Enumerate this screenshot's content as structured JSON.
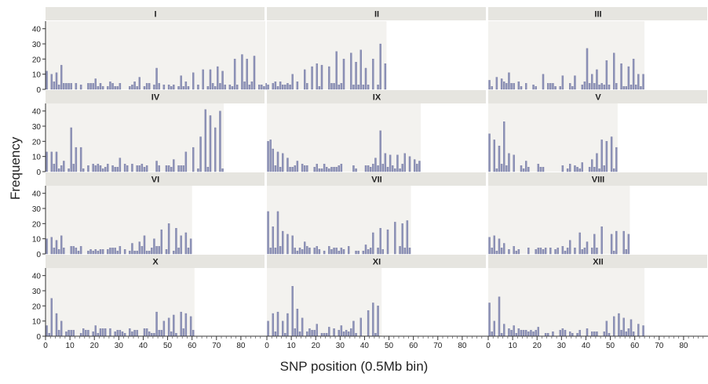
{
  "chart_data": {
    "type": "bar",
    "ylabel": "Frequency",
    "xlabel": "SNP position (0.5Mb bin)",
    "ylim": [
      0,
      45
    ],
    "y_ticks": [
      "0",
      "10",
      "20",
      "30",
      "40"
    ],
    "x_ticks": [
      "0",
      "10",
      "20",
      "30",
      "40",
      "50",
      "60",
      "70",
      "80"
    ],
    "xlim": [
      0,
      90
    ],
    "colors": {
      "bar": "#8d92b8",
      "panel_bg": "#f3f2ef",
      "strip_bg": "#e6e5e0"
    },
    "panels": [
      {
        "label": "I",
        "xmax": 91,
        "peaks": [
          [
            0,
            12
          ],
          [
            2,
            10
          ],
          [
            4,
            11
          ],
          [
            6,
            16
          ],
          [
            8,
            4
          ],
          [
            20,
            7
          ],
          [
            38,
            8
          ],
          [
            45,
            14
          ],
          [
            55,
            9
          ],
          [
            60,
            11
          ],
          [
            64,
            13
          ],
          [
            67,
            13
          ],
          [
            70,
            15
          ],
          [
            72,
            12
          ],
          [
            77,
            20
          ],
          [
            80,
            23
          ],
          [
            82,
            20
          ],
          [
            85,
            22
          ]
        ]
      },
      {
        "label": "II",
        "xmax": 49,
        "peaks": [
          [
            5,
            5
          ],
          [
            10,
            10
          ],
          [
            15,
            13
          ],
          [
            18,
            15
          ],
          [
            20,
            17
          ],
          [
            22,
            16
          ],
          [
            25,
            15
          ],
          [
            28,
            25
          ],
          [
            31,
            20
          ],
          [
            34,
            24
          ],
          [
            36,
            18
          ],
          [
            38,
            26
          ],
          [
            40,
            14
          ],
          [
            43,
            20
          ],
          [
            46,
            30
          ],
          [
            48,
            17
          ]
        ]
      },
      {
        "label": "III",
        "xmax": 64,
        "peaks": [
          [
            0,
            6
          ],
          [
            3,
            8
          ],
          [
            5,
            7
          ],
          [
            8,
            11
          ],
          [
            12,
            5
          ],
          [
            22,
            10
          ],
          [
            30,
            9
          ],
          [
            35,
            9
          ],
          [
            40,
            27
          ],
          [
            42,
            10
          ],
          [
            44,
            13
          ],
          [
            48,
            19
          ],
          [
            51,
            24
          ],
          [
            54,
            17
          ],
          [
            57,
            15
          ],
          [
            59,
            20
          ],
          [
            61,
            10
          ],
          [
            63,
            10
          ]
        ]
      },
      {
        "label": "IV",
        "xmax": 73,
        "peaks": [
          [
            0,
            13
          ],
          [
            2,
            13
          ],
          [
            4,
            13
          ],
          [
            7,
            7
          ],
          [
            10,
            29
          ],
          [
            12,
            16
          ],
          [
            14,
            16
          ],
          [
            25,
            5
          ],
          [
            30,
            9
          ],
          [
            35,
            5
          ],
          [
            45,
            7
          ],
          [
            52,
            8
          ],
          [
            57,
            13
          ],
          [
            60,
            16
          ],
          [
            63,
            23
          ],
          [
            65,
            41
          ],
          [
            67,
            37
          ],
          [
            69,
            29
          ],
          [
            71,
            40
          ]
        ]
      },
      {
        "label": "IX",
        "xmax": 63,
        "peaks": [
          [
            0,
            20
          ],
          [
            1,
            21
          ],
          [
            2,
            15
          ],
          [
            4,
            13
          ],
          [
            6,
            12
          ],
          [
            8,
            9
          ],
          [
            12,
            7
          ],
          [
            20,
            5
          ],
          [
            30,
            5
          ],
          [
            40,
            4
          ],
          [
            44,
            9
          ],
          [
            46,
            27
          ],
          [
            48,
            12
          ],
          [
            50,
            11
          ],
          [
            53,
            11
          ],
          [
            56,
            12
          ],
          [
            58,
            10
          ],
          [
            60,
            8
          ],
          [
            62,
            7
          ]
        ]
      },
      {
        "label": "V",
        "xmax": 53,
        "peaks": [
          [
            0,
            25
          ],
          [
            2,
            21
          ],
          [
            4,
            17
          ],
          [
            6,
            33
          ],
          [
            8,
            12
          ],
          [
            10,
            11
          ],
          [
            15,
            7
          ],
          [
            20,
            5
          ],
          [
            30,
            4
          ],
          [
            38,
            6
          ],
          [
            42,
            8
          ],
          [
            44,
            12
          ],
          [
            46,
            21
          ],
          [
            48,
            20
          ],
          [
            50,
            23
          ],
          [
            52,
            16
          ]
        ]
      },
      {
        "label": "VI",
        "xmax": 60,
        "peaks": [
          [
            0,
            10
          ],
          [
            2,
            11
          ],
          [
            4,
            9
          ],
          [
            6,
            12
          ],
          [
            10,
            5
          ],
          [
            20,
            3
          ],
          [
            30,
            5
          ],
          [
            35,
            7
          ],
          [
            38,
            8
          ],
          [
            40,
            12
          ],
          [
            44,
            10
          ],
          [
            47,
            16
          ],
          [
            50,
            20
          ],
          [
            53,
            17
          ],
          [
            55,
            12
          ],
          [
            57,
            14
          ],
          [
            59,
            10
          ]
        ]
      },
      {
        "label": "VII",
        "xmax": 59,
        "peaks": [
          [
            0,
            28
          ],
          [
            2,
            18
          ],
          [
            4,
            28
          ],
          [
            6,
            15
          ],
          [
            8,
            13
          ],
          [
            10,
            12
          ],
          [
            15,
            8
          ],
          [
            20,
            5
          ],
          [
            30,
            4
          ],
          [
            40,
            6
          ],
          [
            43,
            14
          ],
          [
            46,
            17
          ],
          [
            49,
            16
          ],
          [
            52,
            21
          ],
          [
            55,
            20
          ],
          [
            57,
            22
          ]
        ]
      },
      {
        "label": "VIII",
        "xmax": 58,
        "peaks": [
          [
            0,
            11
          ],
          [
            2,
            12
          ],
          [
            4,
            10
          ],
          [
            6,
            7
          ],
          [
            10,
            5
          ],
          [
            20,
            4
          ],
          [
            30,
            5
          ],
          [
            33,
            9
          ],
          [
            37,
            14
          ],
          [
            40,
            8
          ],
          [
            43,
            13
          ],
          [
            46,
            18
          ],
          [
            50,
            13
          ],
          [
            52,
            15
          ],
          [
            55,
            15
          ],
          [
            57,
            13
          ]
        ]
      },
      {
        "label": "X",
        "xmax": 61,
        "peaks": [
          [
            0,
            7
          ],
          [
            2,
            25
          ],
          [
            4,
            15
          ],
          [
            6,
            10
          ],
          [
            10,
            4
          ],
          [
            20,
            7
          ],
          [
            30,
            4
          ],
          [
            40,
            5
          ],
          [
            45,
            16
          ],
          [
            48,
            10
          ],
          [
            50,
            12
          ],
          [
            52,
            14
          ],
          [
            55,
            16
          ],
          [
            57,
            15
          ],
          [
            59,
            13
          ]
        ]
      },
      {
        "label": "XI",
        "xmax": 47,
        "peaks": [
          [
            0,
            10
          ],
          [
            2,
            15
          ],
          [
            4,
            16
          ],
          [
            6,
            10
          ],
          [
            8,
            15
          ],
          [
            10,
            33
          ],
          [
            12,
            18
          ],
          [
            14,
            12
          ],
          [
            20,
            8
          ],
          [
            25,
            6
          ],
          [
            30,
            7
          ],
          [
            35,
            10
          ],
          [
            38,
            12
          ],
          [
            41,
            17
          ],
          [
            43,
            22
          ],
          [
            45,
            20
          ]
        ]
      },
      {
        "label": "XII",
        "xmax": 64,
        "peaks": [
          [
            0,
            22
          ],
          [
            2,
            10
          ],
          [
            4,
            26
          ],
          [
            6,
            8
          ],
          [
            10,
            7
          ],
          [
            20,
            6
          ],
          [
            30,
            5
          ],
          [
            40,
            5
          ],
          [
            48,
            10
          ],
          [
            51,
            13
          ],
          [
            53,
            15
          ],
          [
            55,
            12
          ],
          [
            58,
            11
          ],
          [
            61,
            8
          ],
          [
            63,
            7
          ]
        ]
      }
    ]
  }
}
